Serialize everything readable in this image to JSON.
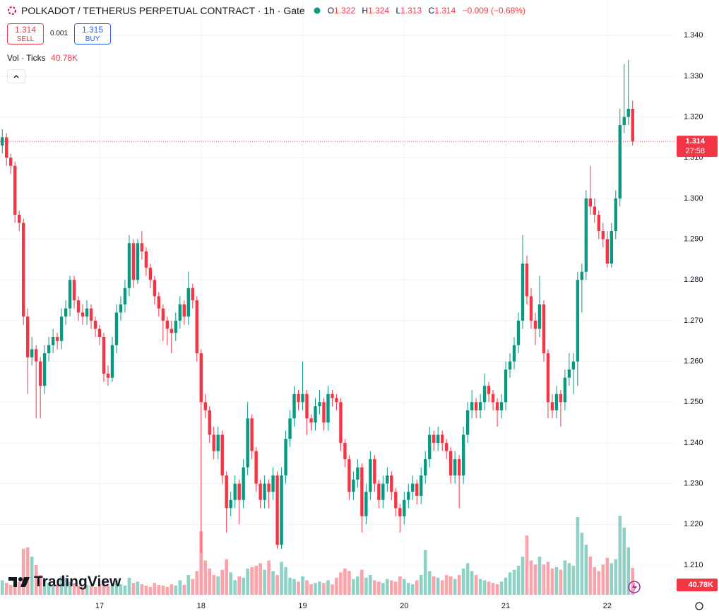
{
  "header": {
    "title": "POLKADOT / TETHERUS PERPETUAL CONTRACT · 1h · Gate",
    "ohlc": [
      {
        "key": "O",
        "value": "1.322"
      },
      {
        "key": "H",
        "value": "1.324"
      },
      {
        "key": "L",
        "value": "1.313"
      },
      {
        "key": "C",
        "value": "1.314"
      }
    ],
    "change": "−0.009 (−0.68%)",
    "sell": {
      "price": "1.314",
      "label": "SELL"
    },
    "spread": "0.001",
    "buy": {
      "price": "1.315",
      "label": "BUY"
    },
    "volume_legend": {
      "label": "Vol · Ticks",
      "value": "40.78K"
    },
    "last_price": "1.314",
    "countdown": "27:58",
    "last_volume": "40.78K",
    "logo": "TradingView"
  },
  "chart_data": {
    "type": "candlestick",
    "up_color": "#089981",
    "down_color": "#f23645",
    "grid": true,
    "ylim": [
      1.2022,
      1.3487
    ],
    "yticks": [
      {
        "value": 1.21,
        "label": "1.210"
      },
      {
        "value": 1.22,
        "label": "1.220"
      },
      {
        "value": 1.23,
        "label": "1.230"
      },
      {
        "value": 1.24,
        "label": "1.240"
      },
      {
        "value": 1.25,
        "label": "1.250"
      },
      {
        "value": 1.26,
        "label": "1.260"
      },
      {
        "value": 1.27,
        "label": "1.270"
      },
      {
        "value": 1.28,
        "label": "1.280"
      },
      {
        "value": 1.29,
        "label": "1.290"
      },
      {
        "value": 1.3,
        "label": "1.300"
      },
      {
        "value": 1.31,
        "label": "1.310"
      },
      {
        "value": 1.32,
        "label": "1.320"
      },
      {
        "value": 1.33,
        "label": "1.330"
      },
      {
        "value": 1.34,
        "label": "1.340"
      }
    ],
    "categories": [
      null,
      null,
      null,
      null,
      null,
      null,
      null,
      null,
      null,
      null,
      null,
      null,
      null,
      null,
      null,
      null,
      null,
      null,
      null,
      null,
      null,
      null,
      null,
      "17",
      null,
      null,
      null,
      null,
      null,
      null,
      null,
      null,
      null,
      null,
      null,
      null,
      null,
      null,
      null,
      null,
      null,
      null,
      null,
      null,
      null,
      null,
      null,
      "18",
      null,
      null,
      null,
      null,
      null,
      null,
      null,
      null,
      null,
      null,
      null,
      null,
      null,
      null,
      null,
      null,
      null,
      null,
      null,
      null,
      null,
      null,
      null,
      "19",
      null,
      null,
      null,
      null,
      null,
      null,
      null,
      null,
      null,
      null,
      null,
      null,
      null,
      null,
      null,
      null,
      null,
      null,
      null,
      null,
      null,
      null,
      null,
      "20",
      null,
      null,
      null,
      null,
      null,
      null,
      null,
      null,
      null,
      null,
      null,
      null,
      null,
      null,
      null,
      null,
      null,
      null,
      null,
      null,
      null,
      null,
      null,
      "21",
      null,
      null,
      null,
      null,
      null,
      null,
      null,
      null,
      null,
      null,
      null,
      null,
      null,
      null,
      null,
      null,
      null,
      null,
      null,
      null,
      null,
      null,
      null,
      "22",
      null,
      null,
      null,
      null,
      null,
      null
    ],
    "ohlc": [
      [
        1.313,
        1.317,
        1.311,
        1.315
      ],
      [
        1.315,
        1.316,
        1.308,
        1.31
      ],
      [
        1.31,
        1.311,
        1.306,
        1.308
      ],
      [
        1.308,
        1.309,
        1.294,
        1.296
      ],
      [
        1.296,
        1.297,
        1.292,
        1.294
      ],
      [
        1.294,
        1.295,
        1.269,
        1.271
      ],
      [
        1.271,
        1.273,
        1.252,
        1.261
      ],
      [
        1.261,
        1.266,
        1.259,
        1.263
      ],
      [
        1.263,
        1.264,
        1.246,
        1.26
      ],
      [
        1.26,
        1.261,
        1.246,
        1.254
      ],
      [
        1.254,
        1.264,
        1.252,
        1.262
      ],
      [
        1.262,
        1.266,
        1.26,
        1.264
      ],
      [
        1.264,
        1.268,
        1.262,
        1.266
      ],
      [
        1.266,
        1.267,
        1.263,
        1.265
      ],
      [
        1.265,
        1.273,
        1.263,
        1.271
      ],
      [
        1.271,
        1.275,
        1.269,
        1.273
      ],
      [
        1.273,
        1.281,
        1.271,
        1.28
      ],
      [
        1.28,
        1.281,
        1.273,
        1.275
      ],
      [
        1.275,
        1.276,
        1.27,
        1.272
      ],
      [
        1.272,
        1.274,
        1.269,
        1.271
      ],
      [
        1.271,
        1.275,
        1.269,
        1.273
      ],
      [
        1.273,
        1.274,
        1.268,
        1.27
      ],
      [
        1.27,
        1.271,
        1.266,
        1.268
      ],
      [
        1.268,
        1.269,
        1.264,
        1.266
      ],
      [
        1.266,
        1.267,
        1.255,
        1.257
      ],
      [
        1.257,
        1.259,
        1.254,
        1.256
      ],
      [
        1.256,
        1.266,
        1.255,
        1.264
      ],
      [
        1.264,
        1.274,
        1.262,
        1.272
      ],
      [
        1.272,
        1.276,
        1.27,
        1.274
      ],
      [
        1.274,
        1.28,
        1.272,
        1.278
      ],
      [
        1.278,
        1.291,
        1.276,
        1.289
      ],
      [
        1.289,
        1.29,
        1.278,
        1.28
      ],
      [
        1.28,
        1.29,
        1.279,
        1.289
      ],
      [
        1.289,
        1.292,
        1.285,
        1.287
      ],
      [
        1.287,
        1.288,
        1.281,
        1.283
      ],
      [
        1.283,
        1.284,
        1.278,
        1.28
      ],
      [
        1.28,
        1.281,
        1.274,
        1.276
      ],
      [
        1.276,
        1.277,
        1.271,
        1.273
      ],
      [
        1.273,
        1.274,
        1.265,
        1.27
      ],
      [
        1.27,
        1.271,
        1.264,
        1.268
      ],
      [
        1.268,
        1.27,
        1.262,
        1.267
      ],
      [
        1.267,
        1.272,
        1.265,
        1.27
      ],
      [
        1.27,
        1.276,
        1.268,
        1.274
      ],
      [
        1.274,
        1.275,
        1.269,
        1.271
      ],
      [
        1.271,
        1.282,
        1.269,
        1.278
      ],
      [
        1.278,
        1.279,
        1.273,
        1.275
      ],
      [
        1.275,
        1.276,
        1.26,
        1.262
      ],
      [
        1.262,
        1.263,
        1.213,
        1.25
      ],
      [
        1.25,
        1.252,
        1.246,
        1.248
      ],
      [
        1.248,
        1.249,
        1.24,
        1.242
      ],
      [
        1.242,
        1.244,
        1.236,
        1.238
      ],
      [
        1.238,
        1.244,
        1.236,
        1.242
      ],
      [
        1.242,
        1.243,
        1.23,
        1.232
      ],
      [
        1.232,
        1.233,
        1.218,
        1.224
      ],
      [
        1.224,
        1.228,
        1.222,
        1.226
      ],
      [
        1.226,
        1.232,
        1.224,
        1.23
      ],
      [
        1.23,
        1.231,
        1.22,
        1.226
      ],
      [
        1.226,
        1.236,
        1.224,
        1.234
      ],
      [
        1.234,
        1.25,
        1.232,
        1.246
      ],
      [
        1.246,
        1.247,
        1.236,
        1.238
      ],
      [
        1.238,
        1.239,
        1.228,
        1.23
      ],
      [
        1.23,
        1.231,
        1.224,
        1.226
      ],
      [
        1.226,
        1.232,
        1.224,
        1.23
      ],
      [
        1.23,
        1.231,
        1.224,
        1.228
      ],
      [
        1.228,
        1.234,
        1.226,
        1.232
      ],
      [
        1.232,
        1.233,
        1.214,
        1.215
      ],
      [
        1.215,
        1.234,
        1.214,
        1.232
      ],
      [
        1.232,
        1.243,
        1.23,
        1.241
      ],
      [
        1.241,
        1.248,
        1.239,
        1.246
      ],
      [
        1.246,
        1.254,
        1.244,
        1.252
      ],
      [
        1.252,
        1.253,
        1.248,
        1.25
      ],
      [
        1.25,
        1.26,
        1.248,
        1.252
      ],
      [
        1.252,
        1.253,
        1.242,
        1.246
      ],
      [
        1.246,
        1.247,
        1.243,
        1.245
      ],
      [
        1.245,
        1.251,
        1.243,
        1.249
      ],
      [
        1.249,
        1.253,
        1.247,
        1.25
      ],
      [
        1.25,
        1.251,
        1.243,
        1.245
      ],
      [
        1.245,
        1.254,
        1.243,
        1.252
      ],
      [
        1.252,
        1.253,
        1.249,
        1.251
      ],
      [
        1.251,
        1.252,
        1.248,
        1.25
      ],
      [
        1.25,
        1.251,
        1.238,
        1.24
      ],
      [
        1.24,
        1.241,
        1.234,
        1.236
      ],
      [
        1.236,
        1.237,
        1.226,
        1.228
      ],
      [
        1.228,
        1.233,
        1.226,
        1.231
      ],
      [
        1.231,
        1.236,
        1.229,
        1.234
      ],
      [
        1.234,
        1.235,
        1.218,
        1.222
      ],
      [
        1.222,
        1.23,
        1.22,
        1.228
      ],
      [
        1.228,
        1.238,
        1.226,
        1.236
      ],
      [
        1.236,
        1.237,
        1.228,
        1.23
      ],
      [
        1.23,
        1.231,
        1.224,
        1.226
      ],
      [
        1.226,
        1.232,
        1.224,
        1.23
      ],
      [
        1.23,
        1.234,
        1.228,
        1.232
      ],
      [
        1.232,
        1.233,
        1.226,
        1.228
      ],
      [
        1.228,
        1.229,
        1.222,
        1.224
      ],
      [
        1.224,
        1.225,
        1.218,
        1.222
      ],
      [
        1.222,
        1.228,
        1.22,
        1.226
      ],
      [
        1.226,
        1.23,
        1.224,
        1.228
      ],
      [
        1.228,
        1.232,
        1.226,
        1.23
      ],
      [
        1.23,
        1.231,
        1.225,
        1.227
      ],
      [
        1.227,
        1.234,
        1.225,
        1.232
      ],
      [
        1.232,
        1.238,
        1.23,
        1.236
      ],
      [
        1.236,
        1.244,
        1.234,
        1.242
      ],
      [
        1.242,
        1.243,
        1.238,
        1.24
      ],
      [
        1.24,
        1.244,
        1.238,
        1.242
      ],
      [
        1.242,
        1.243,
        1.238,
        1.24
      ],
      [
        1.24,
        1.241,
        1.236,
        1.238
      ],
      [
        1.238,
        1.239,
        1.23,
        1.232
      ],
      [
        1.232,
        1.238,
        1.23,
        1.236
      ],
      [
        1.236,
        1.237,
        1.224,
        1.232
      ],
      [
        1.232,
        1.244,
        1.23,
        1.242
      ],
      [
        1.242,
        1.25,
        1.24,
        1.248
      ],
      [
        1.248,
        1.253,
        1.246,
        1.25
      ],
      [
        1.25,
        1.251,
        1.246,
        1.248
      ],
      [
        1.248,
        1.252,
        1.246,
        1.25
      ],
      [
        1.25,
        1.257,
        1.248,
        1.254
      ],
      [
        1.254,
        1.255,
        1.25,
        1.252
      ],
      [
        1.252,
        1.253,
        1.248,
        1.25
      ],
      [
        1.25,
        1.251,
        1.244,
        1.248
      ],
      [
        1.248,
        1.252,
        1.246,
        1.25
      ],
      [
        1.25,
        1.26,
        1.248,
        1.258
      ],
      [
        1.258,
        1.262,
        1.256,
        1.26
      ],
      [
        1.26,
        1.266,
        1.258,
        1.264
      ],
      [
        1.264,
        1.272,
        1.262,
        1.27
      ],
      [
        1.27,
        1.291,
        1.268,
        1.284
      ],
      [
        1.284,
        1.286,
        1.274,
        1.276
      ],
      [
        1.276,
        1.278,
        1.268,
        1.27
      ],
      [
        1.27,
        1.272,
        1.264,
        1.268
      ],
      [
        1.268,
        1.281,
        1.266,
        1.274
      ],
      [
        1.274,
        1.275,
        1.26,
        1.262
      ],
      [
        1.262,
        1.263,
        1.246,
        1.25
      ],
      [
        1.25,
        1.252,
        1.246,
        1.248
      ],
      [
        1.248,
        1.254,
        1.246,
        1.252
      ],
      [
        1.252,
        1.253,
        1.244,
        1.25
      ],
      [
        1.25,
        1.258,
        1.248,
        1.256
      ],
      [
        1.256,
        1.262,
        1.254,
        1.258
      ],
      [
        1.258,
        1.262,
        1.252,
        1.26
      ],
      [
        1.26,
        1.282,
        1.254,
        1.28
      ],
      [
        1.28,
        1.284,
        1.272,
        1.282
      ],
      [
        1.282,
        1.302,
        1.28,
        1.3
      ],
      [
        1.3,
        1.308,
        1.296,
        1.298
      ],
      [
        1.298,
        1.3,
        1.294,
        1.296
      ],
      [
        1.296,
        1.297,
        1.29,
        1.292
      ],
      [
        1.292,
        1.294,
        1.288,
        1.29
      ],
      [
        1.29,
        1.292,
        1.283,
        1.284
      ],
      [
        1.284,
        1.294,
        1.283,
        1.292
      ],
      [
        1.292,
        1.302,
        1.29,
        1.3
      ],
      [
        1.3,
        1.322,
        1.298,
        1.318
      ],
      [
        1.318,
        1.333,
        1.316,
        1.32
      ],
      [
        1.32,
        1.334,
        1.318,
        1.322
      ],
      [
        1.322,
        1.324,
        1.313,
        1.314
      ]
    ],
    "volume": [
      22000,
      18000,
      15000,
      12000,
      20000,
      70000,
      72000,
      58000,
      45000,
      30000,
      25000,
      18000,
      14000,
      16000,
      28000,
      26000,
      20000,
      18000,
      14000,
      12000,
      15000,
      14000,
      12000,
      16000,
      20000,
      14000,
      18000,
      22000,
      16000,
      14000,
      26000,
      18000,
      20000,
      16000,
      14000,
      12000,
      18000,
      15000,
      14000,
      12000,
      16000,
      14000,
      22000,
      15000,
      30000,
      24000,
      36000,
      96000,
      52000,
      40000,
      30000,
      28000,
      38000,
      54000,
      34000,
      22000,
      28000,
      26000,
      40000,
      42000,
      44000,
      48000,
      38000,
      52000,
      36000,
      30000,
      50000,
      42000,
      26000,
      24000,
      20000,
      28000,
      22000,
      16000,
      18000,
      20000,
      18000,
      22000,
      16000,
      26000,
      34000,
      40000,
      36000,
      24000,
      28000,
      38000,
      26000,
      30000,
      22000,
      20000,
      18000,
      24000,
      22000,
      20000,
      28000,
      24000,
      18000,
      16000,
      22000,
      30000,
      68000,
      36000,
      28000,
      26000,
      22000,
      30000,
      28000,
      24000,
      30000,
      40000,
      48000,
      36000,
      30000,
      24000,
      22000,
      20000,
      18000,
      16000,
      20000,
      26000,
      34000,
      38000,
      44000,
      58000,
      90000,
      52000,
      46000,
      58000,
      46000,
      50000,
      40000,
      42000,
      38000,
      52000,
      48000,
      44000,
      118000,
      94000,
      76000,
      58000,
      42000,
      36000,
      46000,
      56000,
      48000,
      54000,
      120000,
      102000,
      72000,
      40780
    ]
  }
}
